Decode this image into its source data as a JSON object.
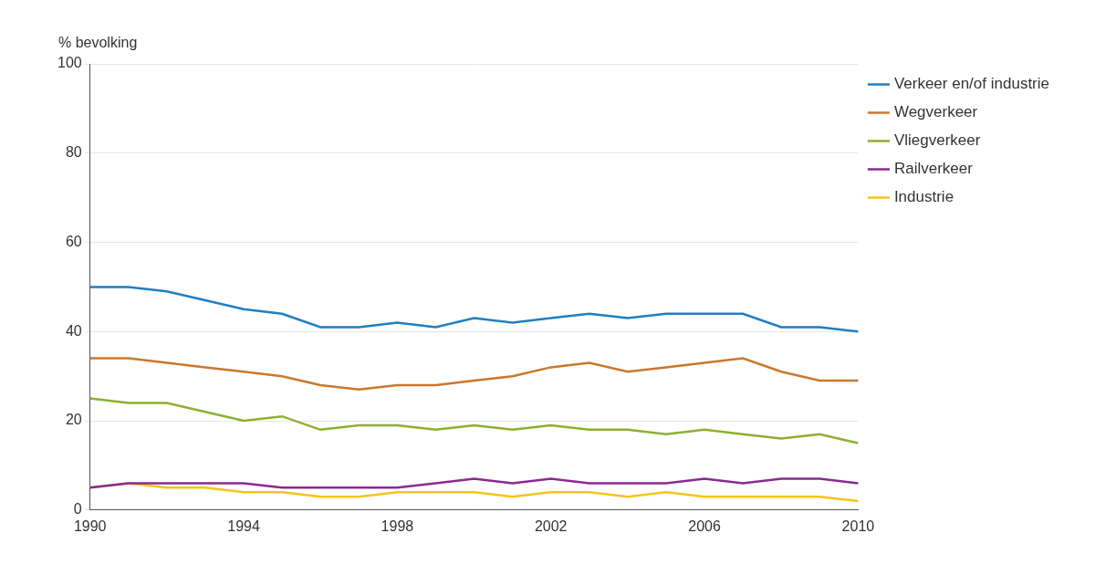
{
  "chart_data": {
    "type": "line",
    "y_label": "% bevolking",
    "categories": [
      "1990",
      null,
      null,
      null,
      "1994",
      null,
      null,
      null,
      "1998",
      null,
      null,
      null,
      "2002",
      null,
      null,
      null,
      "2006",
      null,
      null,
      null,
      "2010"
    ],
    "series": [
      {
        "name": "Verkeer en/of industrie",
        "color": "#1f7fc1",
        "values": [
          50,
          50,
          49,
          47,
          45,
          44,
          41,
          41,
          42,
          41,
          43,
          42,
          43,
          44,
          43,
          44,
          44,
          44,
          41,
          41,
          40
        ]
      },
      {
        "name": "Wegverkeer",
        "color": "#c9782d",
        "values": [
          34,
          34,
          33,
          32,
          31,
          30,
          28,
          27,
          28,
          28,
          29,
          30,
          32,
          33,
          31,
          32,
          33,
          34,
          31,
          29,
          29
        ]
      },
      {
        "name": "Vliegverkeer",
        "color": "#8cb030",
        "values": [
          25,
          24,
          24,
          22,
          20,
          21,
          18,
          19,
          19,
          18,
          19,
          18,
          19,
          18,
          18,
          17,
          18,
          17,
          16,
          17,
          15
        ]
      },
      {
        "name": "Railverkeer",
        "color": "#8a2a8f",
        "values": [
          5,
          6,
          6,
          6,
          6,
          5,
          5,
          5,
          5,
          6,
          7,
          6,
          7,
          6,
          6,
          6,
          7,
          6,
          7,
          7,
          6
        ]
      },
      {
        "name": "Industrie",
        "color": "#f5c518",
        "values": [
          5,
          6,
          5,
          5,
          4,
          4,
          3,
          3,
          4,
          4,
          4,
          3,
          4,
          4,
          3,
          4,
          3,
          3,
          3,
          3,
          2
        ]
      }
    ],
    "ylim": [
      0,
      100
    ],
    "yticks": [
      0,
      20,
      40,
      60,
      80,
      100
    ],
    "grid": true,
    "legend": "right"
  }
}
